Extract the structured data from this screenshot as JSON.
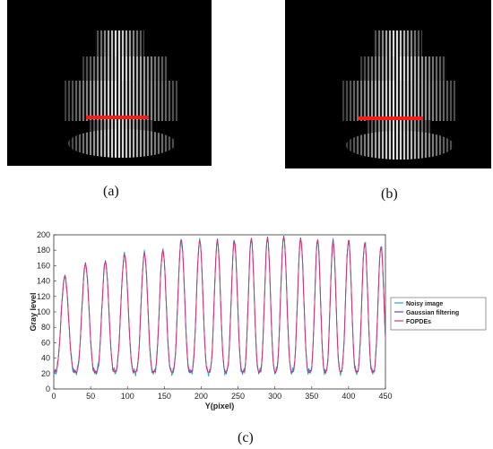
{
  "captions": {
    "a": "(a)",
    "b": "(b)",
    "c": "(c)"
  },
  "images": [
    {
      "name": "noisy-fringe-object",
      "description_icon": "striped-cylinder-object",
      "marker_color": "#ff1a1a"
    },
    {
      "name": "filtered-fringe-object",
      "description_icon": "striped-cylinder-object",
      "marker_color": "#ff1a1a"
    }
  ],
  "chart_data": {
    "type": "line",
    "title": "",
    "xlabel": "Y(pixel)",
    "ylabel": "Gray level",
    "xlim": [
      0,
      450
    ],
    "ylim": [
      0,
      200
    ],
    "xticks": [
      0,
      50,
      100,
      150,
      200,
      250,
      300,
      350,
      400,
      450
    ],
    "yticks": [
      0,
      20,
      40,
      60,
      80,
      100,
      120,
      140,
      160,
      180,
      200
    ],
    "grid": false,
    "legend_position": "right",
    "peaks_x": [
      15,
      43,
      70,
      96,
      123,
      148,
      173,
      198,
      222,
      245,
      268,
      290,
      312,
      335,
      358,
      379,
      400,
      422,
      444
    ],
    "peaks_y": [
      146,
      162,
      165,
      174,
      176,
      180,
      193,
      193,
      192,
      192,
      195,
      196,
      197,
      195,
      194,
      192,
      193,
      190,
      185
    ],
    "troughs_y": 22,
    "series": [
      {
        "name": "Noisy image",
        "color": "#2ca6c4"
      },
      {
        "name": "Gaussian filtering",
        "color": "#5050d8"
      },
      {
        "name": "FOPDEs",
        "color": "#e0306a"
      }
    ]
  }
}
